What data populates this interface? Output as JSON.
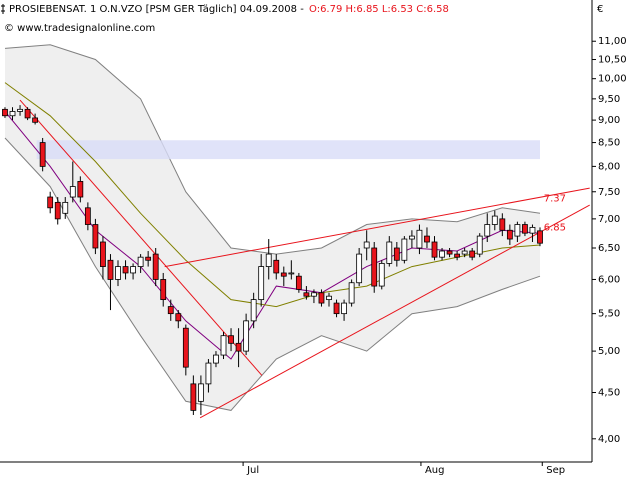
{
  "chart_data": {
    "type": "candlestick",
    "title": "PROSIEBENSAT. 1 O.N.VZO [PSM GER  Täglich] 04.09.2008 -",
    "quote": "O:6.79 H:6.85 L:6.53 C:6.58",
    "subtitle": "© www.tradesignalonline.com",
    "y_unit": "€",
    "log_scale": true,
    "ylim": [
      3.79,
      11.67
    ],
    "yticks": [
      {
        "value": 4,
        "label": "4,00"
      },
      {
        "value": 4.5,
        "label": "4,50"
      },
      {
        "value": 5,
        "label": "5,00"
      },
      {
        "value": 5.5,
        "label": "5,50"
      },
      {
        "value": 6,
        "label": "6,00"
      },
      {
        "value": 6.5,
        "label": "6,50"
      },
      {
        "value": 7,
        "label": "7,00"
      },
      {
        "value": 7.5,
        "label": "7,50"
      },
      {
        "value": 8,
        "label": "8,00"
      },
      {
        "value": 8.5,
        "label": "8,50"
      },
      {
        "value": 9,
        "label": "9,00"
      },
      {
        "value": 9.5,
        "label": "9,50"
      },
      {
        "value": 10,
        "label": "10,00"
      },
      {
        "value": 10.5,
        "label": "10,50"
      },
      {
        "value": 11,
        "label": "11,00"
      }
    ],
    "xlim": [
      -0.66,
      77.9
    ],
    "xticks": [
      {
        "value": 31.6,
        "label": "Jul"
      },
      {
        "value": 55.2,
        "label": "Aug"
      },
      {
        "value": 71.3,
        "label": "Sep"
      }
    ],
    "up_color": "#ffffff",
    "down_color": "#e8141c",
    "x": [
      0,
      1,
      2,
      3,
      4,
      5,
      6,
      7,
      8,
      9,
      10,
      11,
      12,
      13,
      14,
      15,
      16,
      17,
      18,
      19,
      20,
      21,
      22,
      23,
      24,
      25,
      26,
      27,
      28,
      29,
      30,
      31,
      32,
      33,
      34,
      35,
      36,
      37,
      38,
      39,
      40,
      41,
      42,
      43,
      44,
      45,
      46,
      47,
      48,
      49,
      50,
      51,
      52,
      53,
      54,
      55,
      56,
      57,
      58,
      59,
      60,
      61,
      62,
      63,
      64,
      65,
      66,
      67,
      68,
      69,
      70,
      71
    ],
    "open": [
      9.25,
      9.1,
      9.2,
      9.25,
      9.05,
      8.5,
      7.4,
      7.3,
      7.1,
      7.4,
      7.7,
      7.2,
      6.9,
      6.6,
      6.3,
      6.0,
      6.2,
      6.1,
      6.2,
      6.35,
      6.4,
      6.0,
      5.6,
      5.5,
      5.3,
      4.6,
      4.4,
      4.6,
      4.85,
      4.95,
      5.2,
      5.1,
      5.0,
      5.4,
      5.7,
      6.2,
      6.3,
      6.1,
      6.1,
      6.05,
      5.8,
      5.75,
      5.8,
      5.7,
      5.65,
      5.5,
      5.65,
      5.95,
      6.5,
      6.5,
      5.9,
      6.25,
      6.5,
      6.3,
      6.65,
      6.5,
      6.7,
      6.6,
      6.35,
      6.45,
      6.4,
      6.4,
      6.45,
      6.4,
      6.7,
      6.9,
      7.0,
      6.8,
      6.7,
      6.9,
      6.75,
      6.79
    ],
    "high": [
      9.3,
      9.3,
      9.35,
      9.3,
      9.15,
      8.6,
      7.5,
      7.4,
      7.4,
      8.1,
      7.8,
      7.3,
      7.0,
      6.7,
      6.4,
      6.3,
      6.3,
      6.25,
      6.4,
      6.45,
      6.5,
      6.1,
      5.7,
      5.55,
      5.35,
      4.7,
      4.7,
      4.9,
      5.0,
      5.25,
      5.3,
      5.3,
      5.5,
      5.8,
      6.4,
      6.65,
      6.4,
      6.2,
      6.3,
      6.1,
      5.9,
      5.85,
      5.85,
      5.8,
      5.7,
      5.7,
      6.0,
      6.5,
      6.8,
      6.6,
      6.3,
      6.7,
      6.6,
      6.7,
      6.8,
      6.9,
      6.85,
      6.7,
      6.5,
      6.5,
      6.45,
      6.5,
      6.5,
      6.75,
      7.1,
      7.15,
      7.1,
      6.9,
      6.95,
      6.95,
      6.9,
      6.85
    ],
    "low": [
      9.05,
      9.0,
      9.1,
      9.0,
      8.9,
      7.9,
      7.1,
      6.9,
      7.0,
      7.3,
      7.3,
      6.8,
      6.4,
      6.0,
      5.55,
      5.9,
      6.0,
      6.0,
      6.1,
      6.2,
      5.9,
      5.6,
      5.4,
      5.3,
      4.7,
      4.25,
      4.25,
      4.5,
      4.8,
      4.9,
      5.0,
      4.8,
      4.95,
      5.3,
      5.6,
      6.0,
      6.0,
      5.9,
      6.0,
      5.8,
      5.7,
      5.65,
      5.6,
      5.6,
      5.45,
      5.4,
      5.6,
      5.9,
      6.3,
      5.8,
      5.85,
      6.2,
      6.2,
      6.25,
      6.5,
      6.4,
      6.5,
      6.3,
      6.3,
      6.35,
      6.3,
      6.35,
      6.3,
      6.35,
      6.6,
      6.8,
      6.7,
      6.55,
      6.6,
      6.7,
      6.6,
      6.53
    ],
    "close": [
      9.1,
      9.2,
      9.25,
      9.05,
      8.95,
      8.0,
      7.2,
      7.0,
      7.3,
      7.6,
      7.4,
      6.9,
      6.5,
      6.2,
      6.0,
      6.2,
      6.1,
      6.2,
      6.35,
      6.3,
      6.0,
      5.7,
      5.5,
      5.4,
      4.8,
      4.3,
      4.6,
      4.85,
      4.95,
      5.2,
      5.1,
      5.0,
      5.4,
      5.7,
      6.2,
      6.4,
      6.1,
      6.05,
      6.1,
      5.85,
      5.75,
      5.8,
      5.65,
      5.75,
      5.5,
      5.65,
      5.95,
      6.4,
      6.6,
      5.9,
      6.25,
      6.6,
      6.3,
      6.65,
      6.7,
      6.8,
      6.6,
      6.35,
      6.45,
      6.4,
      6.35,
      6.45,
      6.35,
      6.7,
      6.9,
      7.05,
      6.8,
      6.65,
      6.9,
      6.75,
      6.85,
      6.58
    ],
    "band": {
      "color": "#808080",
      "fill": "#efefef",
      "x": [
        0,
        6,
        12,
        18,
        24,
        30,
        36,
        42,
        48,
        54,
        60,
        66,
        71
      ],
      "upper": [
        10.8,
        10.9,
        10.5,
        9.5,
        7.5,
        6.5,
        6.4,
        6.5,
        6.9,
        7.0,
        6.95,
        7.2,
        7.1
      ],
      "lower": [
        8.6,
        7.6,
        6.2,
        5.2,
        4.4,
        4.3,
        4.9,
        5.2,
        5.0,
        5.5,
        5.6,
        5.85,
        6.05
      ]
    },
    "indicators": [
      {
        "color": "#800080",
        "x": [
          0,
          6,
          12,
          18,
          24,
          30,
          36,
          42,
          48,
          54,
          60,
          66,
          71
        ],
        "values": [
          9.2,
          8.0,
          6.8,
          6.2,
          5.4,
          4.9,
          5.9,
          5.8,
          6.2,
          6.5,
          6.45,
          6.8,
          6.75
        ]
      },
      {
        "color": "#808000",
        "x": [
          0,
          6,
          12,
          18,
          24,
          30,
          36,
          42,
          48,
          54,
          60,
          66,
          71
        ],
        "values": [
          9.9,
          9.1,
          8.1,
          7.1,
          6.3,
          5.7,
          5.6,
          5.8,
          5.9,
          6.2,
          6.35,
          6.5,
          6.55
        ]
      }
    ],
    "trendlines": [
      {
        "color": "#e8141c",
        "x": [
          2.0,
          34.1
        ],
        "values": [
          9.47,
          4.7
        ]
      },
      {
        "color": "#e8141c",
        "x": [
          21.2,
          77.6
        ],
        "values": [
          6.2,
          7.57
        ]
      },
      {
        "color": "#e8141c",
        "x": [
          25.9,
          77.6
        ],
        "values": [
          4.22,
          7.25
        ]
      }
    ],
    "zone": {
      "color": "#d8dcf8",
      "x": [
        4.2,
        71
      ],
      "values": [
        8.15,
        8.55
      ]
    },
    "annotations": [
      {
        "value": 7.37,
        "x": 71.5,
        "color": "#e8141c"
      },
      {
        "value": 6.85,
        "x": 71.5,
        "color": "#e8141c"
      }
    ]
  }
}
